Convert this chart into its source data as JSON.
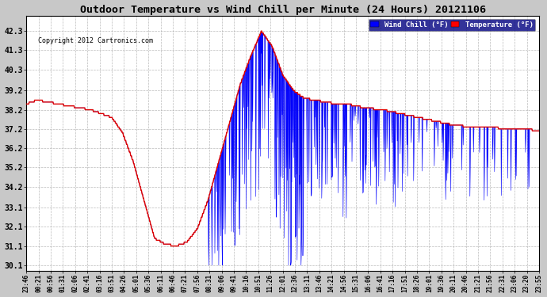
{
  "title": "Outdoor Temperature vs Wind Chill per Minute (24 Hours) 20121106",
  "copyright": "Copyright 2012 Cartronics.com",
  "legend_wind_chill": "Wind Chill (°F)",
  "legend_temperature": "Temperature (°F)",
  "ylim": [
    29.8,
    43.1
  ],
  "yticks": [
    30.1,
    31.1,
    32.1,
    33.1,
    34.2,
    35.2,
    36.2,
    37.2,
    38.2,
    39.2,
    40.3,
    41.3,
    42.3
  ],
  "bg_color": "#c8c8c8",
  "plot_bg_color": "#ffffff",
  "grid_color": "#aaaaaa",
  "temp_color": "#dd0000",
  "wind_chill_color": "#0000ff",
  "wind_chill_fill_color": "#0000ee",
  "xtick_labels": [
    "23:46",
    "00:21",
    "00:56",
    "01:31",
    "02:06",
    "02:41",
    "03:16",
    "03:51",
    "04:26",
    "05:01",
    "05:36",
    "06:11",
    "06:46",
    "07:21",
    "07:56",
    "08:31",
    "09:06",
    "09:41",
    "10:16",
    "10:51",
    "11:26",
    "12:01",
    "12:36",
    "13:11",
    "13:46",
    "14:21",
    "14:56",
    "15:31",
    "16:06",
    "16:41",
    "17:16",
    "17:51",
    "18:26",
    "19:01",
    "19:36",
    "20:11",
    "20:46",
    "21:21",
    "21:56",
    "22:31",
    "23:06",
    "23:20",
    "23:55"
  ],
  "n_points": 1440,
  "temp_keypoints_x": [
    0,
    30,
    60,
    90,
    120,
    150,
    180,
    210,
    240,
    270,
    300,
    330,
    360,
    390,
    420,
    450,
    480,
    510,
    540,
    570,
    600,
    630,
    660,
    690,
    720,
    750,
    780,
    810,
    840,
    870,
    900,
    950,
    1000,
    1050,
    1100,
    1150,
    1200,
    1250,
    1300,
    1350,
    1400,
    1439
  ],
  "temp_keypoints_y": [
    38.5,
    38.7,
    38.6,
    38.5,
    38.4,
    38.3,
    38.2,
    38.0,
    37.8,
    37.0,
    35.5,
    33.5,
    31.5,
    31.2,
    31.1,
    31.3,
    32.0,
    33.5,
    35.5,
    37.5,
    39.5,
    41.0,
    42.3,
    41.5,
    40.0,
    39.2,
    38.8,
    38.7,
    38.6,
    38.5,
    38.5,
    38.3,
    38.2,
    38.0,
    37.8,
    37.6,
    37.4,
    37.3,
    37.3,
    37.2,
    37.2,
    37.1
  ]
}
